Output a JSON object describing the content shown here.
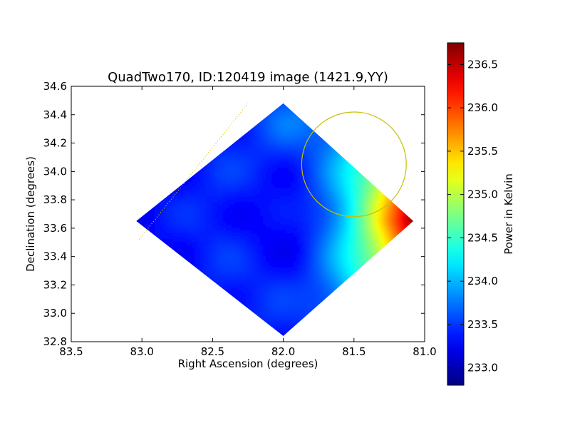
{
  "chart_data": {
    "type": "heatmap",
    "title": "QuadTwo170, ID:120419 image (1421.9,YY)",
    "xlabel": "Right Ascension (degrees)",
    "ylabel": "Declination (degrees)",
    "xlim": [
      83.5,
      81.0
    ],
    "ylim": [
      32.8,
      34.6
    ],
    "x_ticks": [
      "83.5",
      "83.0",
      "82.5",
      "82.0",
      "81.5",
      "81.0"
    ],
    "y_ticks": [
      "32.8",
      "33.0",
      "33.2",
      "33.4",
      "33.6",
      "33.8",
      "34.0",
      "34.2",
      "34.4",
      "34.6"
    ],
    "colorbar": {
      "label": "Power in Kelvin",
      "range": [
        232.8,
        236.75
      ],
      "ticks": [
        "233.0",
        "233.5",
        "234.0",
        "234.5",
        "235.0",
        "235.5",
        "236.0",
        "236.5"
      ],
      "colormap": "jet"
    },
    "coverage_region": {
      "shape": "rounded-diamond",
      "vertices": [
        {
          "ra": 82.0,
          "dec": 34.48
        },
        {
          "ra": 81.08,
          "dec": 33.65
        },
        {
          "ra": 82.0,
          "dec": 32.84
        },
        {
          "ra": 83.04,
          "dec": 33.65
        }
      ]
    },
    "field": {
      "base_kelvin": 233.45,
      "gradient_direction": "increases toward lower right ascension (right edge)",
      "min_kelvin": 232.9,
      "max_kelvin": 236.7
    },
    "annotations": [
      {
        "type": "circle",
        "center_ra": 81.5,
        "center_dec": 34.05,
        "radius_deg": 0.37,
        "color": "#c8c000"
      },
      {
        "type": "dotted-line",
        "from_ra": 83.02,
        "from_dec": 33.52,
        "to_ra": 82.25,
        "to_dec": 34.48,
        "color": "#c8c000"
      }
    ]
  }
}
